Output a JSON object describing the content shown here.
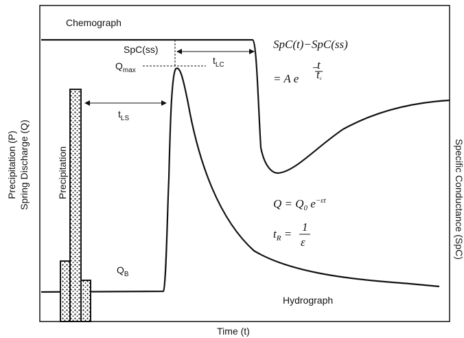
{
  "labels": {
    "chemograph": "Chemograph",
    "spc_ss": "SpC(ss)",
    "q_max": {
      "main": "Q",
      "sub": "max"
    },
    "t_lc": {
      "main": "t",
      "sub": "LC"
    },
    "t_ls": {
      "main": "t",
      "sub": "LS"
    },
    "precipitation": "Precipitation",
    "q_b": {
      "main": "Q",
      "sub": "B"
    },
    "hydrograph": "Hydrograph"
  },
  "axes": {
    "y_left": [
      "Precipitation (P)",
      "Spring Discharge (Q)"
    ],
    "y_right": "Specific Conductance (SpC)",
    "x": "Time (t)"
  },
  "equations": {
    "chemograph": {
      "lhs": "SpC(t)−SpC(ss)",
      "rhs": "=   A e",
      "exp_sign": "−",
      "exp_num": "t",
      "exp_den": "t",
      "exp_den_sub": "c"
    },
    "recession": {
      "lhs": "Q = Q",
      "lhs_sub": "0",
      "rhs": " e",
      "exp": "−εt"
    },
    "residence": {
      "lhs": "t",
      "lhs_sub": "R",
      "eq": " = ",
      "num": "1",
      "den": "ε"
    }
  }
}
